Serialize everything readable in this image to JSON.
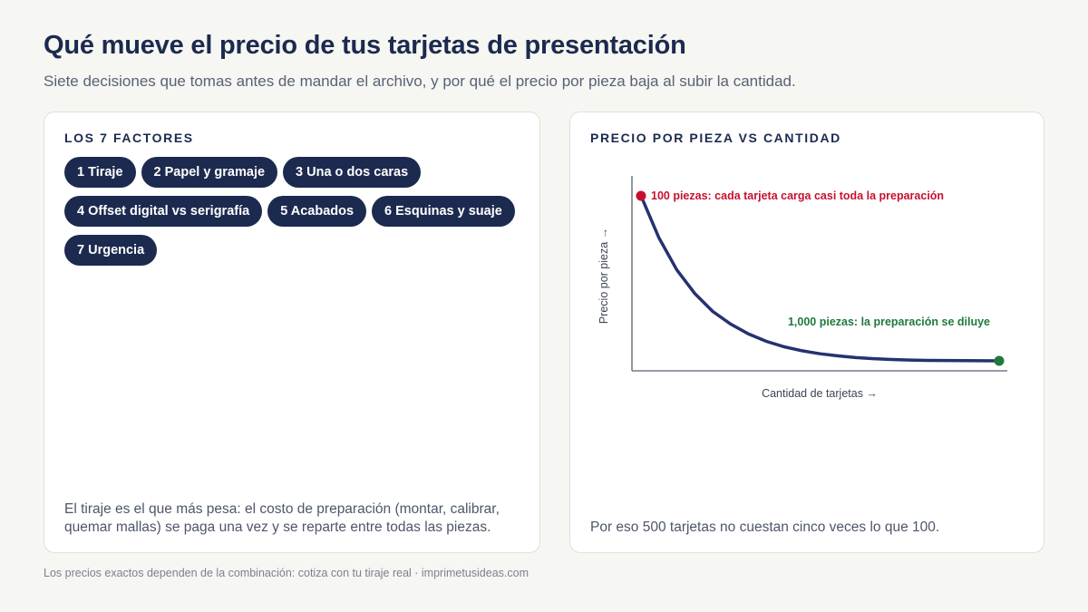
{
  "page": {
    "title": "Qué mueve el precio de tus tarjetas de presentación",
    "subtitle": "Siete decisiones que tomas antes de mandar el archivo, y por qué el precio por pieza baja al subir la cantidad.",
    "footer": "Los precios exactos dependen de la combinación: cotiza con tu tiraje real · imprimetusideas.com"
  },
  "factors": {
    "heading": "LOS 7 FACTORES",
    "items": [
      "1 Tiraje",
      "2 Papel y gramaje",
      "3 Una o dos caras",
      "4 Offset digital vs serigrafía",
      "5 Acabados",
      "6 Esquinas y suaje",
      "7 Urgencia"
    ],
    "note": "El tiraje es el que más pesa: el costo de preparación (montar, calibrar, quemar mallas) se paga una vez y se reparte entre todas las piezas."
  },
  "price_panel": {
    "heading": "PRECIO POR PIEZA VS CANTIDAD",
    "note": "Por eso 500 tarjetas no cuestan cinco veces lo que 100."
  },
  "chart_data": {
    "type": "line",
    "title": "PRECIO POR PIEZA VS CANTIDAD",
    "xlabel": "Cantidad de tarjetas →",
    "ylabel": "Precio por pieza →",
    "axis_ticks": "none",
    "grid": false,
    "curve_shape": "exponential-decay",
    "x": [
      0,
      0.05,
      0.1,
      0.15,
      0.2,
      0.25,
      0.3,
      0.35,
      0.4,
      0.45,
      0.5,
      0.55,
      0.6,
      0.65,
      0.7,
      0.75,
      0.8,
      0.85,
      0.9,
      0.95,
      1.0
    ],
    "y": [
      1.0,
      0.745,
      0.551,
      0.408,
      0.3,
      0.223,
      0.163,
      0.118,
      0.085,
      0.061,
      0.043,
      0.03,
      0.02,
      0.013,
      0.008,
      0.005,
      0.003,
      0.002,
      0.001,
      0.0005,
      0.0
    ],
    "line_color": "#24336e",
    "annotations": [
      {
        "text": "100 piezas: cada tarjeta carga casi toda la preparación",
        "x": 0.0,
        "y": 1.0,
        "color": "#c8102e"
      },
      {
        "text": "1,000 piezas: la preparación se diluye",
        "x": 1.0,
        "y": 0.0,
        "color": "#1f7a3d"
      }
    ]
  }
}
